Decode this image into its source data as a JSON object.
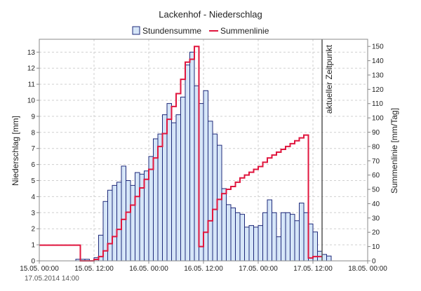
{
  "chart_data": {
    "type": "bar",
    "title": "Lackenhof - Niederschlag",
    "legend": [
      "Stundensumme",
      "Summenlinie"
    ],
    "y_label": "Niederschlag [mm]",
    "y2_label": "Summenlinie [mm/Tag]",
    "now_label": "aktueller Zeitpunkt",
    "footer_date": "17.05.2014  14:00",
    "x_ticks": [
      "15.05. 00:00",
      "15.05. 12:00",
      "16.05. 00:00",
      "16.05. 12:00",
      "17.05. 00:00",
      "17.05. 12:00",
      "18.05. 00:00"
    ],
    "y_ticks": [
      "0",
      "1",
      "2",
      "3",
      "4",
      "5",
      "6",
      "7",
      "8",
      "9",
      "10",
      "11",
      "12",
      "13"
    ],
    "y2_ticks": [
      "0",
      "10",
      "20",
      "30",
      "40",
      "50",
      "60",
      "70",
      "80",
      "90",
      "100",
      "110",
      "120",
      "130",
      "140",
      "150"
    ],
    "x_range_hours": [
      0,
      72
    ],
    "ylim": [
      0,
      13.8
    ],
    "y2lim": [
      0,
      155
    ],
    "now_hour": 62,
    "colors": {
      "bar_fill": "#d6e6f8",
      "bar_stroke": "#1f2a7a",
      "line": "#e0163e",
      "grid": "#cfcfcf",
      "now_line": "#555555"
    },
    "bars": [
      {
        "h": 8,
        "v": 0.1
      },
      {
        "h": 9,
        "v": 0.1
      },
      {
        "h": 10,
        "v": 0.1
      },
      {
        "h": 12,
        "v": 0.2
      },
      {
        "h": 13,
        "v": 1.6
      },
      {
        "h": 14,
        "v": 3.7
      },
      {
        "h": 15,
        "v": 4.4
      },
      {
        "h": 16,
        "v": 4.7
      },
      {
        "h": 17,
        "v": 4.9
      },
      {
        "h": 18,
        "v": 5.9
      },
      {
        "h": 19,
        "v": 5.0
      },
      {
        "h": 20,
        "v": 4.7
      },
      {
        "h": 21,
        "v": 5.5
      },
      {
        "h": 22,
        "v": 5.4
      },
      {
        "h": 23,
        "v": 5.6
      },
      {
        "h": 24,
        "v": 6.5
      },
      {
        "h": 25,
        "v": 7.6
      },
      {
        "h": 26,
        "v": 7.9
      },
      {
        "h": 27,
        "v": 9.1
      },
      {
        "h": 28,
        "v": 9.8
      },
      {
        "h": 29,
        "v": 8.6
      },
      {
        "h": 30,
        "v": 9.1
      },
      {
        "h": 31,
        "v": 10.2
      },
      {
        "h": 32,
        "v": 12.2
      },
      {
        "h": 33,
        "v": 13.0
      },
      {
        "h": 34,
        "v": 10.9
      },
      {
        "h": 35,
        "v": 9.8
      },
      {
        "h": 36,
        "v": 10.6
      },
      {
        "h": 37,
        "v": 8.7
      },
      {
        "h": 38,
        "v": 7.9
      },
      {
        "h": 39,
        "v": 7.2
      },
      {
        "h": 40,
        "v": 4.5
      },
      {
        "h": 41,
        "v": 3.5
      },
      {
        "h": 42,
        "v": 3.3
      },
      {
        "h": 43,
        "v": 3.0
      },
      {
        "h": 44,
        "v": 2.9
      },
      {
        "h": 45,
        "v": 2.1
      },
      {
        "h": 46,
        "v": 2.2
      },
      {
        "h": 47,
        "v": 2.1
      },
      {
        "h": 48,
        "v": 2.2
      },
      {
        "h": 49,
        "v": 3.0
      },
      {
        "h": 50,
        "v": 3.8
      },
      {
        "h": 51,
        "v": 3.0
      },
      {
        "h": 52,
        "v": 1.5
      },
      {
        "h": 53,
        "v": 3.0
      },
      {
        "h": 54,
        "v": 3.0
      },
      {
        "h": 55,
        "v": 2.9
      },
      {
        "h": 56,
        "v": 2.5
      },
      {
        "h": 57,
        "v": 3.6
      },
      {
        "h": 58,
        "v": 3.0
      },
      {
        "h": 59,
        "v": 2.3
      },
      {
        "h": 60,
        "v": 1.8
      },
      {
        "h": 61,
        "v": 0.6
      },
      {
        "h": 62,
        "v": 0.4
      },
      {
        "h": 63,
        "v": 0.3
      }
    ],
    "summenlinie": [
      {
        "h": 0,
        "v": 11
      },
      {
        "h": 9,
        "v": 11
      },
      {
        "h": 9,
        "v": 0
      },
      {
        "h": 12,
        "v": 0
      },
      {
        "h": 12,
        "v": 1
      },
      {
        "h": 13,
        "v": 1
      },
      {
        "h": 13,
        "v": 3
      },
      {
        "h": 14,
        "v": 3
      },
      {
        "h": 14,
        "v": 7
      },
      {
        "h": 15,
        "v": 7
      },
      {
        "h": 15,
        "v": 12
      },
      {
        "h": 16,
        "v": 12
      },
      {
        "h": 16,
        "v": 17
      },
      {
        "h": 17,
        "v": 17
      },
      {
        "h": 17,
        "v": 22
      },
      {
        "h": 18,
        "v": 22
      },
      {
        "h": 18,
        "v": 29
      },
      {
        "h": 19,
        "v": 29
      },
      {
        "h": 19,
        "v": 34
      },
      {
        "h": 20,
        "v": 34
      },
      {
        "h": 20,
        "v": 39
      },
      {
        "h": 21,
        "v": 39
      },
      {
        "h": 21,
        "v": 45
      },
      {
        "h": 22,
        "v": 45
      },
      {
        "h": 22,
        "v": 51
      },
      {
        "h": 23,
        "v": 51
      },
      {
        "h": 23,
        "v": 57
      },
      {
        "h": 24,
        "v": 57
      },
      {
        "h": 24,
        "v": 64
      },
      {
        "h": 25,
        "v": 64
      },
      {
        "h": 25,
        "v": 72
      },
      {
        "h": 26,
        "v": 72
      },
      {
        "h": 26,
        "v": 80
      },
      {
        "h": 27,
        "v": 80
      },
      {
        "h": 27,
        "v": 89
      },
      {
        "h": 28,
        "v": 89
      },
      {
        "h": 28,
        "v": 99
      },
      {
        "h": 29,
        "v": 99
      },
      {
        "h": 29,
        "v": 108
      },
      {
        "h": 30,
        "v": 108
      },
      {
        "h": 30,
        "v": 117
      },
      {
        "h": 31,
        "v": 117
      },
      {
        "h": 31,
        "v": 127
      },
      {
        "h": 32,
        "v": 127
      },
      {
        "h": 32,
        "v": 139
      },
      {
        "h": 33,
        "v": 139
      },
      {
        "h": 33,
        "v": 141
      },
      {
        "h": 34,
        "v": 141
      },
      {
        "h": 34,
        "v": 150
      },
      {
        "h": 35,
        "v": 150
      },
      {
        "h": 35,
        "v": 10
      },
      {
        "h": 36,
        "v": 10
      },
      {
        "h": 36,
        "v": 20
      },
      {
        "h": 37,
        "v": 20
      },
      {
        "h": 37,
        "v": 28
      },
      {
        "h": 38,
        "v": 28
      },
      {
        "h": 38,
        "v": 36
      },
      {
        "h": 39,
        "v": 36
      },
      {
        "h": 39,
        "v": 43
      },
      {
        "h": 40,
        "v": 43
      },
      {
        "h": 40,
        "v": 47
      },
      {
        "h": 41,
        "v": 47
      },
      {
        "h": 41,
        "v": 50
      },
      {
        "h": 42,
        "v": 50
      },
      {
        "h": 42,
        "v": 52
      },
      {
        "h": 43,
        "v": 52
      },
      {
        "h": 43,
        "v": 55
      },
      {
        "h": 44,
        "v": 55
      },
      {
        "h": 44,
        "v": 58
      },
      {
        "h": 45,
        "v": 58
      },
      {
        "h": 45,
        "v": 60
      },
      {
        "h": 46,
        "v": 60
      },
      {
        "h": 46,
        "v": 62
      },
      {
        "h": 47,
        "v": 62
      },
      {
        "h": 47,
        "v": 64
      },
      {
        "h": 48,
        "v": 64
      },
      {
        "h": 48,
        "v": 66
      },
      {
        "h": 49,
        "v": 66
      },
      {
        "h": 49,
        "v": 69
      },
      {
        "h": 50,
        "v": 69
      },
      {
        "h": 50,
        "v": 72
      },
      {
        "h": 51,
        "v": 72
      },
      {
        "h": 51,
        "v": 74
      },
      {
        "h": 52,
        "v": 74
      },
      {
        "h": 52,
        "v": 76
      },
      {
        "h": 53,
        "v": 76
      },
      {
        "h": 53,
        "v": 78
      },
      {
        "h": 54,
        "v": 78
      },
      {
        "h": 54,
        "v": 80
      },
      {
        "h": 55,
        "v": 80
      },
      {
        "h": 55,
        "v": 82
      },
      {
        "h": 56,
        "v": 82
      },
      {
        "h": 56,
        "v": 84
      },
      {
        "h": 57,
        "v": 84
      },
      {
        "h": 57,
        "v": 86
      },
      {
        "h": 58,
        "v": 86
      },
      {
        "h": 58,
        "v": 88
      },
      {
        "h": 59,
        "v": 88
      },
      {
        "h": 59,
        "v": 2
      },
      {
        "h": 60,
        "v": 2
      },
      {
        "h": 60,
        "v": 3
      },
      {
        "h": 62,
        "v": 3
      }
    ]
  }
}
